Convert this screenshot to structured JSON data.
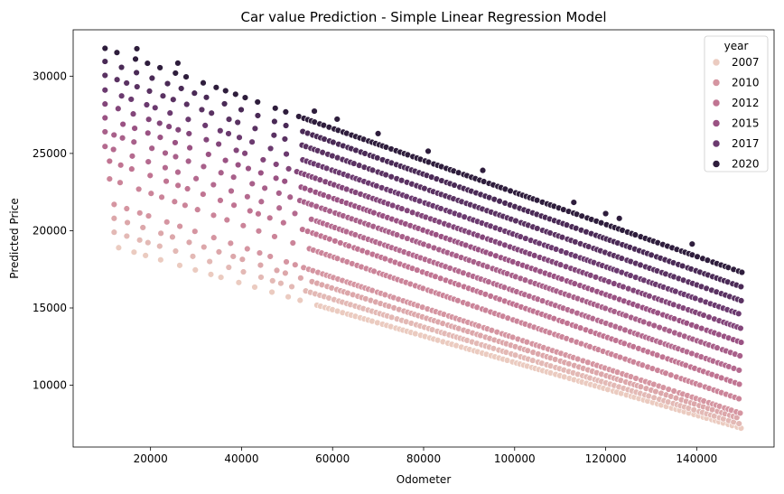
{
  "chart_data": {
    "type": "scatter",
    "title": "Car value Prediction - Simple Linear Regression Model",
    "xlabel": "Odometer",
    "ylabel": "Predicted Price",
    "xlim": [
      3000,
      157000
    ],
    "ylim": [
      6000,
      33000
    ],
    "x_ticks": [
      20000,
      40000,
      60000,
      80000,
      100000,
      120000,
      140000
    ],
    "x_tick_labels": [
      "20000",
      "40000",
      "60000",
      "80000",
      "100000",
      "120000",
      "140000"
    ],
    "y_ticks": [
      10000,
      15000,
      20000,
      25000,
      30000
    ],
    "y_tick_labels": [
      "10000",
      "15000",
      "20000",
      "25000",
      "30000"
    ],
    "grid": false,
    "legend": {
      "title": "year",
      "placement": "top-right",
      "entries": [
        {
          "label": "2007",
          "color": "#ebcbc0"
        },
        {
          "label": "2010",
          "color": "#d595a1"
        },
        {
          "label": "2012",
          "color": "#c07492"
        },
        {
          "label": "2015",
          "color": "#9a5283"
        },
        {
          "label": "2017",
          "color": "#6b3a6f"
        },
        {
          "label": "2020",
          "color": "#2e1d3c"
        }
      ]
    },
    "model": {
      "relationship": "Predicted Price decreases linearly with Odometer; each model year forms a parallel band",
      "slope_per_km": -0.1005,
      "year_step": 1060
    },
    "series": [
      {
        "name": "2020",
        "year": 2020,
        "color": "#2e1d3c",
        "x_range": [
          10000,
          150000
        ],
        "y_at_xmin": 31800,
        "y_at_xmax": 17300
      },
      {
        "name": "2019",
        "year": 2019,
        "color": "#4a2a56",
        "x_range": [
          10000,
          150000
        ],
        "y_at_xmin": 30950,
        "y_at_xmax": 16350
      },
      {
        "name": "2018",
        "year": 2018,
        "color": "#5a3262",
        "x_range": [
          10000,
          150000
        ],
        "y_at_xmin": 30050,
        "y_at_xmax": 15450
      },
      {
        "name": "2017",
        "year": 2017,
        "color": "#6b3a6f",
        "x_range": [
          10000,
          150000
        ],
        "y_at_xmin": 29100,
        "y_at_xmax": 14550
      },
      {
        "name": "2016",
        "year": 2016,
        "color": "#83467a",
        "x_range": [
          10000,
          150000
        ],
        "y_at_xmin": 28200,
        "y_at_xmax": 13650
      },
      {
        "name": "2015",
        "year": 2015,
        "color": "#9a5283",
        "x_range": [
          10000,
          150000
        ],
        "y_at_xmin": 27300,
        "y_at_xmax": 12750
      },
      {
        "name": "2014",
        "year": 2014,
        "color": "#a8608a",
        "x_range": [
          10000,
          150000
        ],
        "y_at_xmin": 26400,
        "y_at_xmax": 11850
      },
      {
        "name": "2013",
        "year": 2013,
        "color": "#b46a8f",
        "x_range": [
          10000,
          150000
        ],
        "y_at_xmin": 25450,
        "y_at_xmax": 10900
      },
      {
        "name": "2012",
        "year": 2012,
        "color": "#c07492",
        "x_range": [
          11000,
          150000
        ],
        "y_at_xmin": 24500,
        "y_at_xmax": 10000
      },
      {
        "name": "2011",
        "year": 2011,
        "color": "#cb8499",
        "x_range": [
          11000,
          150000
        ],
        "y_at_xmin": 23350,
        "y_at_xmax": 9050
      },
      {
        "name": "2010",
        "year": 2010,
        "color": "#d595a1",
        "x_range": [
          12000,
          150000
        ],
        "y_at_xmin": 21700,
        "y_at_xmax": 8150
      },
      {
        "name": "2009",
        "year": 2009,
        "color": "#dca7aa",
        "x_range": [
          12000,
          150000
        ],
        "y_at_xmin": 20800,
        "y_at_xmax": 7800
      },
      {
        "name": "2008",
        "year": 2008,
        "color": "#e3b9b5",
        "x_range": [
          12000,
          150000
        ],
        "y_at_xmin": 19900,
        "y_at_xmax": 7450
      },
      {
        "name": "2007",
        "year": 2007,
        "color": "#ebcbc0",
        "x_range": [
          13000,
          150000
        ],
        "y_at_xmin": 18900,
        "y_at_xmax": 7200
      }
    ]
  }
}
